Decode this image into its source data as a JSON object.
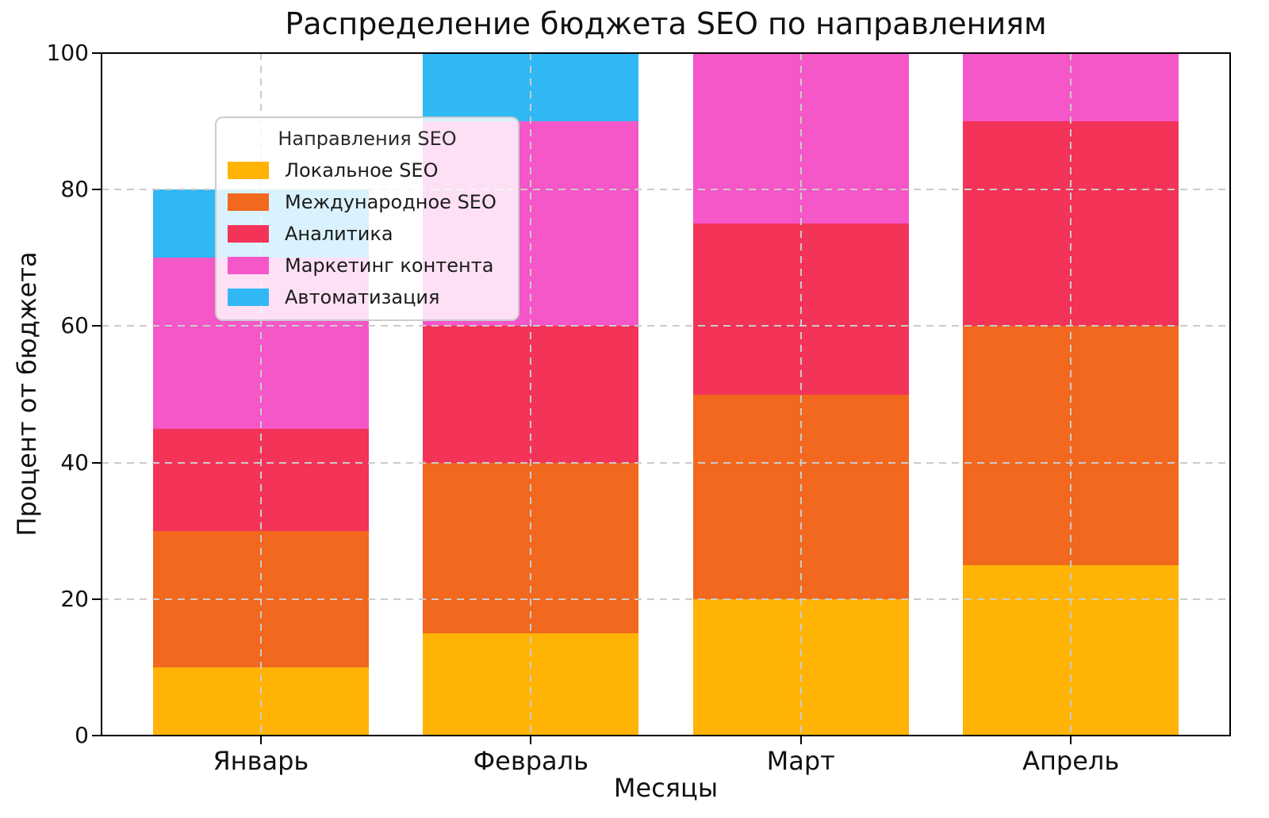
{
  "title": "Распределение бюджета SEO по направлениям",
  "axes": {
    "xlabel": "Месяцы",
    "ylabel": "Процент от бюджета",
    "yticks": [
      0,
      20,
      40,
      60,
      80,
      100
    ]
  },
  "legend": {
    "title": "Направления SEO"
  },
  "chart_data": {
    "type": "bar",
    "stacked": true,
    "title": "Распределение бюджета SEO по направлениям",
    "xlabel": "Месяцы",
    "ylabel": "Процент от бюджета",
    "ylim": [
      0,
      100
    ],
    "grid": true,
    "grid_style": "dashed",
    "legend_position": "upper left",
    "categories": [
      "Январь",
      "Февраль",
      "Март",
      "Апрель"
    ],
    "series": [
      {
        "name": "Локальное SEO",
        "color": "#FFB305",
        "values": [
          10,
          15,
          20,
          25
        ]
      },
      {
        "name": "Международное SEO",
        "color": "#F1681E",
        "values": [
          20,
          25,
          30,
          35
        ]
      },
      {
        "name": "Аналитика",
        "color": "#F33358",
        "values": [
          15,
          20,
          25,
          30
        ]
      },
      {
        "name": "Маркетинг контента",
        "color": "#F556C8",
        "values": [
          25,
          30,
          25,
          10
        ]
      },
      {
        "name": "Автоматизация",
        "color": "#30B8F4",
        "values": [
          10,
          10,
          0,
          0
        ]
      }
    ],
    "totals_by_month": [
      80,
      100,
      100,
      100
    ]
  }
}
